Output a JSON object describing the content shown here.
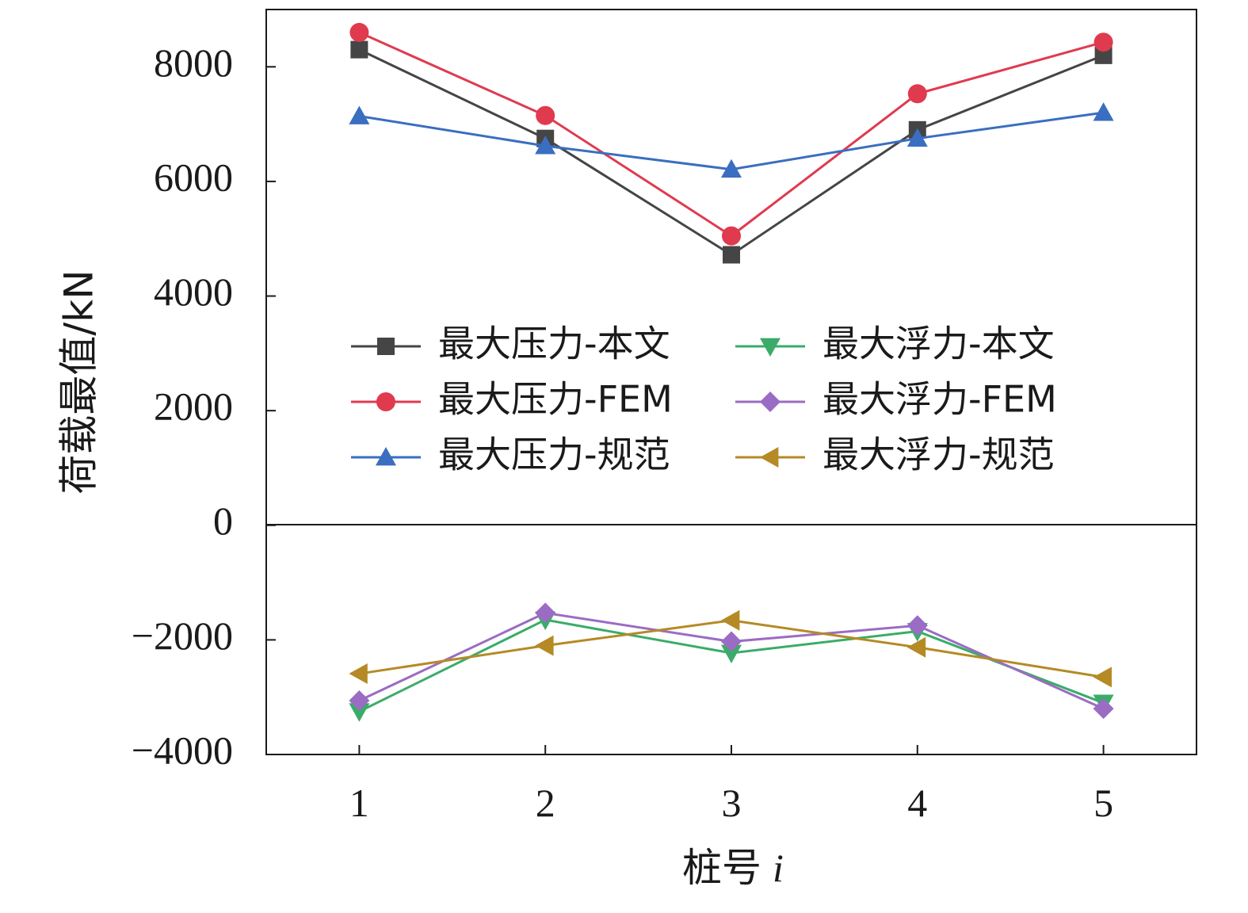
{
  "chart_data": {
    "type": "line",
    "xlabel": "桩号",
    "xlabel_var": "i",
    "ylabel": "荷载最值/kN",
    "x": [
      1,
      2,
      3,
      4,
      5
    ],
    "x_tick_labels": [
      "1",
      "2",
      "3",
      "4",
      "5"
    ],
    "xlim": [
      0.5,
      5.5
    ],
    "ylim": [
      -4000,
      9000
    ],
    "y_ticks": [
      -4000,
      -2000,
      0,
      2000,
      4000,
      6000,
      8000
    ],
    "y_tick_labels": [
      "−4000",
      "−2000",
      "0",
      "2000",
      "4000",
      "6000",
      "8000"
    ],
    "zero_line": true,
    "grid": false,
    "legend_position": "center",
    "series": [
      {
        "name": "最大压力-本文",
        "color": "#454545",
        "marker": "square",
        "values": [
          8300,
          6750,
          4720,
          6900,
          8200
        ]
      },
      {
        "name": "最大压力-FEM",
        "color": "#e03a4f",
        "marker": "circle",
        "values": [
          8600,
          7150,
          5050,
          7530,
          8430
        ]
      },
      {
        "name": "最大压力-规范",
        "color": "#3a6ec0",
        "marker": "triangle-up",
        "values": [
          7140,
          6620,
          6210,
          6750,
          7200
        ]
      },
      {
        "name": "最大浮力-本文",
        "color": "#3aac68",
        "marker": "triangle-down",
        "values": [
          -3250,
          -1650,
          -2230,
          -1850,
          -3100
        ]
      },
      {
        "name": "最大浮力-FEM",
        "color": "#9a6cc4",
        "marker": "diamond",
        "values": [
          -3060,
          -1530,
          -2030,
          -1750,
          -3200
        ]
      },
      {
        "name": "最大浮力-规范",
        "color": "#b58a25",
        "marker": "triangle-left",
        "values": [
          -2590,
          -2100,
          -1660,
          -2130,
          -2650
        ]
      }
    ]
  }
}
